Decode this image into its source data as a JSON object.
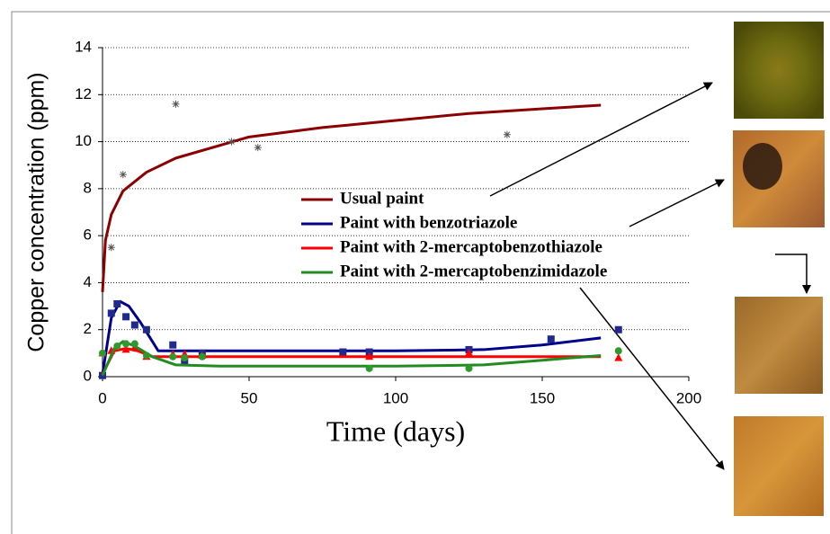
{
  "chart_data": {
    "type": "scatter",
    "xlabel": "Time (days)",
    "ylabel": "Copper concentration (ppm)",
    "xlim": [
      0,
      200
    ],
    "xticks": [
      0,
      50,
      100,
      150,
      200
    ],
    "ylim": [
      0,
      14
    ],
    "yticks": [
      0,
      2,
      4,
      6,
      8,
      10,
      12,
      14
    ],
    "grid": true,
    "series": [
      {
        "name": "Usual paint",
        "color": "#8b0000",
        "marker": "asterisk",
        "marker_color": "#555555",
        "x": [
          3,
          7,
          25,
          44,
          53,
          138
        ],
        "values": [
          5.5,
          8.6,
          11.6,
          10.0,
          9.75,
          10.3
        ],
        "fit": {
          "x": [
            0,
            1,
            3,
            7,
            15,
            25,
            50,
            75,
            100,
            125,
            150,
            170
          ],
          "values": [
            3.6,
            5.8,
            6.9,
            7.9,
            8.7,
            9.3,
            10.2,
            10.6,
            10.9,
            11.2,
            11.4,
            11.55
          ]
        }
      },
      {
        "name": "Paint with benzotriazole",
        "color": "#00008b",
        "marker": "square",
        "marker_color": "#1f2a8c",
        "x": [
          0,
          3,
          5,
          8,
          11,
          15,
          24,
          28,
          34,
          82,
          91,
          125,
          153,
          176
        ],
        "values": [
          0.05,
          2.7,
          3.1,
          2.55,
          2.2,
          2.0,
          1.35,
          0.65,
          1.0,
          1.05,
          1.05,
          1.15,
          1.6,
          2.0
        ],
        "fit": {
          "x": [
            0,
            3,
            6,
            9,
            13,
            19,
            30,
            100,
            130,
            150,
            170
          ],
          "values": [
            0.1,
            2.5,
            3.2,
            3.0,
            2.3,
            1.1,
            1.1,
            1.1,
            1.15,
            1.35,
            1.65
          ]
        }
      },
      {
        "name": "Paint with 2-mercaptobenzothiazole",
        "color": "#ff0000",
        "marker": "triangle",
        "marker_color": "#ff0000",
        "x": [
          0,
          3,
          8,
          11,
          15,
          24,
          28,
          34,
          91,
          125,
          176
        ],
        "values": [
          1.0,
          1.1,
          1.15,
          1.25,
          0.85,
          0.95,
          0.95,
          0.9,
          0.85,
          1.0,
          0.8
        ],
        "fit": {
          "x": [
            0,
            4,
            8,
            12,
            17,
            30,
            170
          ],
          "values": [
            0.1,
            1.1,
            1.2,
            1.1,
            0.85,
            0.85,
            0.85
          ]
        }
      },
      {
        "name": "Paint with 2-mercaptobenzimidazole",
        "color": "#228b22",
        "marker": "circle",
        "marker_color": "#2e9a2e",
        "x": [
          0,
          5,
          8,
          11,
          15,
          24,
          28,
          34,
          91,
          125,
          176
        ],
        "values": [
          1.0,
          1.3,
          1.4,
          1.4,
          0.9,
          0.85,
          0.8,
          0.85,
          0.35,
          0.35,
          1.1
        ],
        "fit": {
          "x": [
            0,
            4,
            7,
            11,
            17,
            25,
            40,
            100,
            130,
            150,
            170
          ],
          "values": [
            0.05,
            1.2,
            1.5,
            1.3,
            0.85,
            0.5,
            0.45,
            0.45,
            0.5,
            0.7,
            0.9
          ]
        }
      }
    ]
  }
}
